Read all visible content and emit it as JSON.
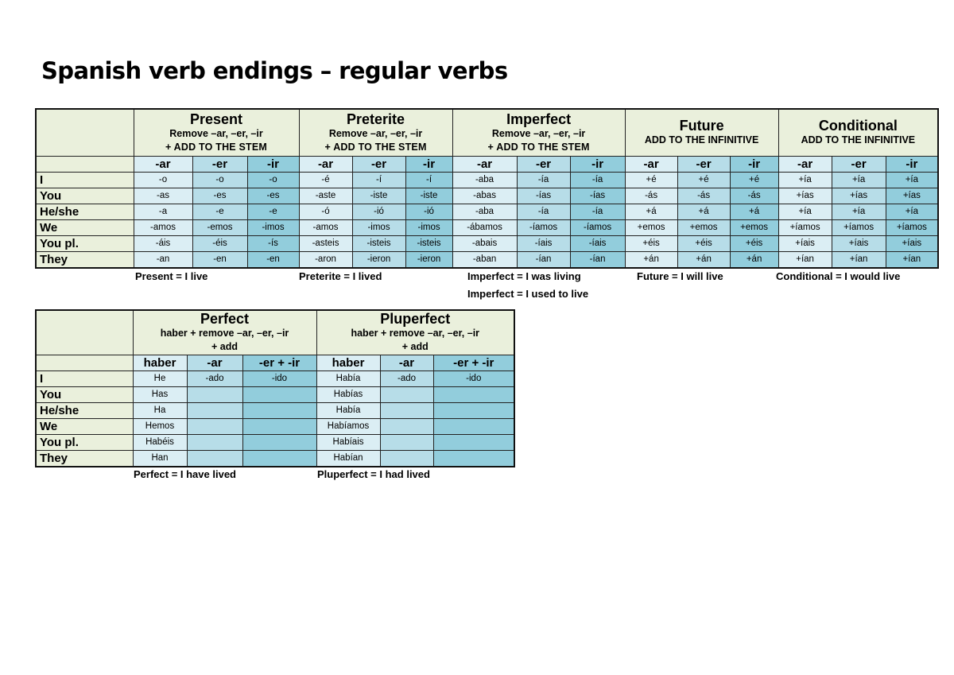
{
  "title": "Spanish verb endings – regular verbs",
  "top_table": {
    "row_labels": [
      "I",
      "You",
      "He/she",
      "We",
      "You pl.",
      "They"
    ],
    "tenses": [
      {
        "name": "Present",
        "instruction_line1": "Remove –ar, –er, –ir",
        "instruction_line2": "+ ADD TO THE STEM",
        "endings": [
          "-ar",
          "-er",
          "-ir"
        ],
        "rows": [
          [
            "-o",
            "-o",
            "-o"
          ],
          [
            "-as",
            "-es",
            "-es"
          ],
          [
            "-a",
            "-e",
            "-e"
          ],
          [
            "-amos",
            "-emos",
            "-imos"
          ],
          [
            "-áis",
            "-éis",
            "-ís"
          ],
          [
            "-an",
            "-en",
            "-en"
          ]
        ],
        "caption": "Present = I live"
      },
      {
        "name": "Preterite",
        "instruction_line1": "Remove –ar, –er, –ir",
        "instruction_line2": "+ ADD TO THE STEM",
        "endings": [
          "-ar",
          "-er",
          "-ir"
        ],
        "rows": [
          [
            "-é",
            "-í",
            "-í"
          ],
          [
            "-aste",
            "-iste",
            "-iste"
          ],
          [
            "-ó",
            "-ió",
            "-ió"
          ],
          [
            "-amos",
            "-imos",
            "-imos"
          ],
          [
            "-asteis",
            "-isteis",
            "-isteis"
          ],
          [
            "-aron",
            "-ieron",
            "-ieron"
          ]
        ],
        "caption": "Preterite = I lived"
      },
      {
        "name": "Imperfect",
        "instruction_line1": "Remove –ar, –er, –ir",
        "instruction_line2": "+ ADD TO THE STEM",
        "endings": [
          "-ar",
          "-er",
          "-ir"
        ],
        "rows": [
          [
            "-aba",
            "-ía",
            "-ía"
          ],
          [
            "-abas",
            "-ías",
            "-ías"
          ],
          [
            "-aba",
            "-ía",
            "-ía"
          ],
          [
            "-ábamos",
            "-íamos",
            "-íamos"
          ],
          [
            "-abais",
            "-íais",
            "-íais"
          ],
          [
            "-aban",
            "-ían",
            "-ían"
          ]
        ],
        "caption": "Imperfect = I was living",
        "caption2": "Imperfect = I used to live"
      },
      {
        "name": "Future",
        "instruction_line1": "ADD TO THE INFINITIVE",
        "endings": [
          "-ar",
          "-er",
          "-ir"
        ],
        "rows": [
          [
            "+é",
            "+é",
            "+é"
          ],
          [
            "-ás",
            "-ás",
            "-ás"
          ],
          [
            "+á",
            "+á",
            "+á"
          ],
          [
            "+emos",
            "+emos",
            "+emos"
          ],
          [
            "+éis",
            "+éis",
            "+éis"
          ],
          [
            "+án",
            "+án",
            "+án"
          ]
        ],
        "caption": "Future = I will live"
      },
      {
        "name": "Conditional",
        "instruction_line1": "ADD TO THE INFINITIVE",
        "endings": [
          "-ar",
          "-er",
          "-ir"
        ],
        "rows": [
          [
            "+ía",
            "+ía",
            "+ía"
          ],
          [
            "+ías",
            "+ías",
            "+ías"
          ],
          [
            "+ía",
            "+ía",
            "+ía"
          ],
          [
            "+íamos",
            "+íamos",
            "+íamos"
          ],
          [
            "+íais",
            "+íais",
            "+íais"
          ],
          [
            "+ían",
            "+ían",
            "+ían"
          ]
        ],
        "caption": "Conditional = I would live"
      }
    ]
  },
  "bottom_table": {
    "row_labels": [
      "I",
      "You",
      "He/she",
      "We",
      "You pl.",
      "They"
    ],
    "tenses": [
      {
        "name": "Perfect",
        "instruction_line1": "haber + remove –ar, –er, –ir",
        "instruction_line2": "+ add",
        "columns": [
          "haber",
          "-ar",
          "-er + -ir"
        ],
        "rows": [
          [
            "He",
            "-ado",
            "-ido"
          ],
          [
            "Has",
            "",
            ""
          ],
          [
            "Ha",
            "",
            ""
          ],
          [
            "Hemos",
            "",
            ""
          ],
          [
            "Habéis",
            "",
            ""
          ],
          [
            "Han",
            "",
            ""
          ]
        ],
        "caption": "Perfect = I have lived"
      },
      {
        "name": "Pluperfect",
        "instruction_line1": "haber + remove –ar, –er, –ir",
        "instruction_line2": "+ add",
        "columns": [
          "haber",
          "-ar",
          "-er + -ir"
        ],
        "rows": [
          [
            "Había",
            "-ado",
            "-ido"
          ],
          [
            "Habías",
            "",
            ""
          ],
          [
            "Había",
            "",
            ""
          ],
          [
            "Habíamos",
            "",
            ""
          ],
          [
            "Habíais",
            "",
            ""
          ],
          [
            "Habían",
            "",
            ""
          ]
        ],
        "caption": "Pluperfect = I had lived"
      }
    ]
  },
  "colors": {
    "header_bg": "#eaf0dc",
    "col1_bg": "#dbeef4",
    "col2_bg": "#b7dde8",
    "col3_bg": "#92cddc",
    "border": "#111111"
  }
}
